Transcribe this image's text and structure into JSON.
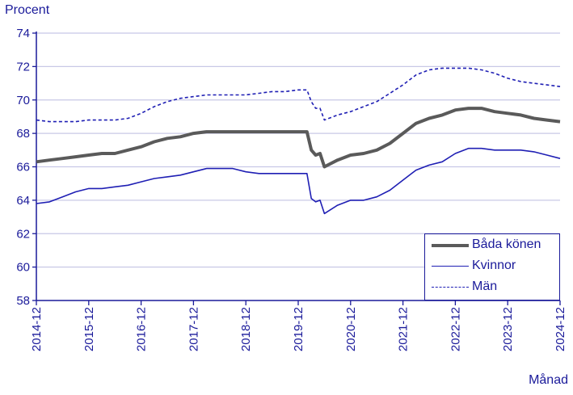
{
  "chart_data": {
    "type": "line",
    "ylabel": "Procent",
    "xlabel": "Månad",
    "ylim": [
      58,
      74
    ],
    "yticks": [
      58,
      60,
      62,
      64,
      66,
      68,
      70,
      72,
      74
    ],
    "x_tick_labels": [
      "2014-12",
      "2015-12",
      "2016-12",
      "2017-12",
      "2018-12",
      "2019-12",
      "2020-12",
      "2021-12",
      "2022-12",
      "2023-12",
      "2024-12"
    ],
    "x_range": [
      "2014-12",
      "2024-12"
    ],
    "grid": "horizontal",
    "legend_position": "bottom-right",
    "colors": {
      "axis": "#1a1a9a",
      "grid": "#c8c8e6",
      "bada": "#5a5a5a",
      "kvinnor": "#1f1fb4",
      "man": "#1f1fb4"
    },
    "series": [
      {
        "name": "Båda könen",
        "style": "solid-thick",
        "points": [
          [
            "2014-12",
            66.3
          ],
          [
            "2015-03",
            66.4
          ],
          [
            "2015-06",
            66.5
          ],
          [
            "2015-09",
            66.6
          ],
          [
            "2015-12",
            66.7
          ],
          [
            "2016-03",
            66.8
          ],
          [
            "2016-06",
            66.8
          ],
          [
            "2016-09",
            67.0
          ],
          [
            "2016-12",
            67.2
          ],
          [
            "2017-03",
            67.5
          ],
          [
            "2017-06",
            67.7
          ],
          [
            "2017-09",
            67.8
          ],
          [
            "2017-12",
            68.0
          ],
          [
            "2018-03",
            68.1
          ],
          [
            "2018-06",
            68.1
          ],
          [
            "2018-09",
            68.1
          ],
          [
            "2018-12",
            68.1
          ],
          [
            "2019-03",
            68.1
          ],
          [
            "2019-06",
            68.1
          ],
          [
            "2019-09",
            68.1
          ],
          [
            "2019-12",
            68.1
          ],
          [
            "2020-02",
            68.1
          ],
          [
            "2020-03",
            67.0
          ],
          [
            "2020-04",
            66.7
          ],
          [
            "2020-05",
            66.8
          ],
          [
            "2020-06",
            66.0
          ],
          [
            "2020-09",
            66.4
          ],
          [
            "2020-12",
            66.7
          ],
          [
            "2021-03",
            66.8
          ],
          [
            "2021-06",
            67.0
          ],
          [
            "2021-09",
            67.4
          ],
          [
            "2021-12",
            68.0
          ],
          [
            "2022-03",
            68.6
          ],
          [
            "2022-06",
            68.9
          ],
          [
            "2022-09",
            69.1
          ],
          [
            "2022-12",
            69.4
          ],
          [
            "2023-03",
            69.5
          ],
          [
            "2023-06",
            69.5
          ],
          [
            "2023-09",
            69.3
          ],
          [
            "2023-12",
            69.2
          ],
          [
            "2024-03",
            69.1
          ],
          [
            "2024-06",
            68.9
          ],
          [
            "2024-09",
            68.8
          ],
          [
            "2024-12",
            68.7
          ]
        ]
      },
      {
        "name": "Kvinnor",
        "style": "solid-thin",
        "points": [
          [
            "2014-12",
            63.8
          ],
          [
            "2015-03",
            63.9
          ],
          [
            "2015-06",
            64.2
          ],
          [
            "2015-09",
            64.5
          ],
          [
            "2015-12",
            64.7
          ],
          [
            "2016-03",
            64.7
          ],
          [
            "2016-06",
            64.8
          ],
          [
            "2016-09",
            64.9
          ],
          [
            "2016-12",
            65.1
          ],
          [
            "2017-03",
            65.3
          ],
          [
            "2017-06",
            65.4
          ],
          [
            "2017-09",
            65.5
          ],
          [
            "2017-12",
            65.7
          ],
          [
            "2018-03",
            65.9
          ],
          [
            "2018-06",
            65.9
          ],
          [
            "2018-09",
            65.9
          ],
          [
            "2018-12",
            65.7
          ],
          [
            "2019-03",
            65.6
          ],
          [
            "2019-06",
            65.6
          ],
          [
            "2019-09",
            65.6
          ],
          [
            "2019-12",
            65.6
          ],
          [
            "2020-02",
            65.6
          ],
          [
            "2020-03",
            64.1
          ],
          [
            "2020-04",
            63.9
          ],
          [
            "2020-05",
            64.0
          ],
          [
            "2020-06",
            63.2
          ],
          [
            "2020-09",
            63.7
          ],
          [
            "2020-12",
            64.0
          ],
          [
            "2021-03",
            64.0
          ],
          [
            "2021-06",
            64.2
          ],
          [
            "2021-09",
            64.6
          ],
          [
            "2021-12",
            65.2
          ],
          [
            "2022-03",
            65.8
          ],
          [
            "2022-06",
            66.1
          ],
          [
            "2022-09",
            66.3
          ],
          [
            "2022-12",
            66.8
          ],
          [
            "2023-03",
            67.1
          ],
          [
            "2023-06",
            67.1
          ],
          [
            "2023-09",
            67.0
          ],
          [
            "2023-12",
            67.0
          ],
          [
            "2024-03",
            67.0
          ],
          [
            "2024-06",
            66.9
          ],
          [
            "2024-09",
            66.7
          ],
          [
            "2024-12",
            66.5
          ]
        ]
      },
      {
        "name": "Män",
        "style": "dashed",
        "points": [
          [
            "2014-12",
            68.8
          ],
          [
            "2015-03",
            68.7
          ],
          [
            "2015-06",
            68.7
          ],
          [
            "2015-09",
            68.7
          ],
          [
            "2015-12",
            68.8
          ],
          [
            "2016-03",
            68.8
          ],
          [
            "2016-06",
            68.8
          ],
          [
            "2016-09",
            68.9
          ],
          [
            "2016-12",
            69.2
          ],
          [
            "2017-03",
            69.6
          ],
          [
            "2017-06",
            69.9
          ],
          [
            "2017-09",
            70.1
          ],
          [
            "2017-12",
            70.2
          ],
          [
            "2018-03",
            70.3
          ],
          [
            "2018-06",
            70.3
          ],
          [
            "2018-09",
            70.3
          ],
          [
            "2018-12",
            70.3
          ],
          [
            "2019-03",
            70.4
          ],
          [
            "2019-06",
            70.5
          ],
          [
            "2019-09",
            70.5
          ],
          [
            "2019-12",
            70.6
          ],
          [
            "2020-02",
            70.6
          ],
          [
            "2020-03",
            69.9
          ],
          [
            "2020-04",
            69.5
          ],
          [
            "2020-05",
            69.5
          ],
          [
            "2020-06",
            68.8
          ],
          [
            "2020-09",
            69.1
          ],
          [
            "2020-12",
            69.3
          ],
          [
            "2021-03",
            69.6
          ],
          [
            "2021-06",
            69.9
          ],
          [
            "2021-09",
            70.4
          ],
          [
            "2021-12",
            70.9
          ],
          [
            "2022-03",
            71.5
          ],
          [
            "2022-06",
            71.8
          ],
          [
            "2022-09",
            71.9
          ],
          [
            "2022-12",
            71.9
          ],
          [
            "2023-03",
            71.9
          ],
          [
            "2023-06",
            71.8
          ],
          [
            "2023-09",
            71.6
          ],
          [
            "2023-12",
            71.3
          ],
          [
            "2024-03",
            71.1
          ],
          [
            "2024-06",
            71.0
          ],
          [
            "2024-09",
            70.9
          ],
          [
            "2024-12",
            70.8
          ]
        ]
      }
    ]
  }
}
